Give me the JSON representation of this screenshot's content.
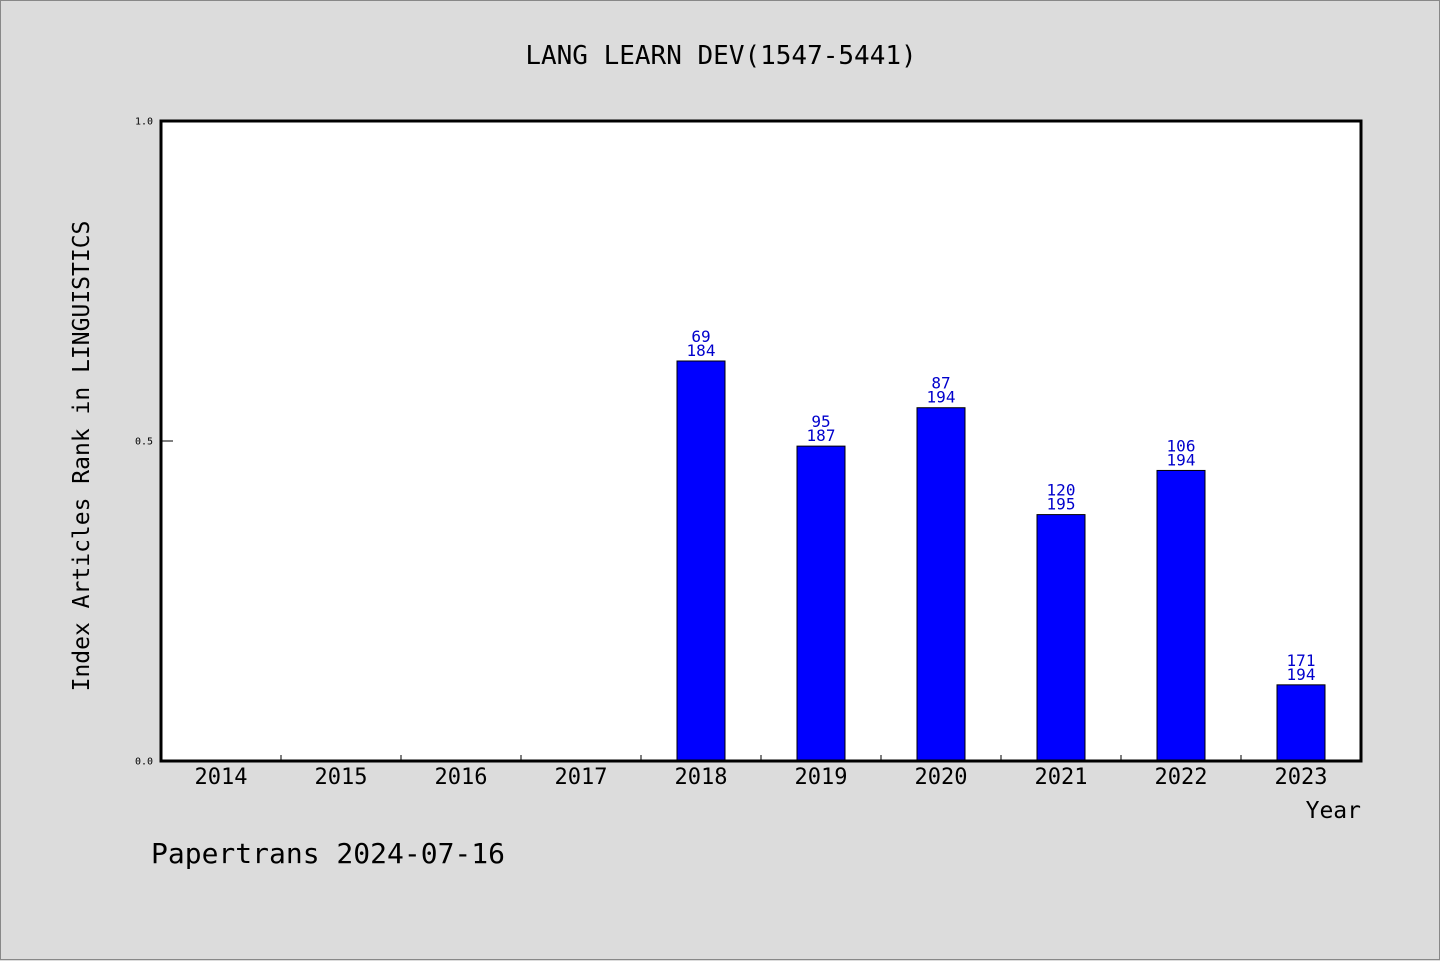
{
  "chart_data": {
    "type": "bar",
    "title": "LANG LEARN DEV(1547-5441)",
    "xlabel": "Year",
    "ylabel": "Index Articles Rank in LINGUISTICS",
    "categories": [
      "2014",
      "2015",
      "2016",
      "2017",
      "2018",
      "2019",
      "2020",
      "2021",
      "2022",
      "2023"
    ],
    "values": [
      null,
      null,
      null,
      null,
      0.625,
      0.492,
      0.552,
      0.385,
      0.454,
      0.119
    ],
    "rank_labels": [
      "",
      "",
      "",
      "",
      "69",
      "95",
      "87",
      "120",
      "106",
      "171"
    ],
    "total_labels": [
      "",
      "",
      "",
      "",
      "184",
      "187",
      "194",
      "195",
      "194",
      "194"
    ],
    "ylim": [
      0,
      1.0
    ],
    "yticks": [
      "0.0",
      "0.5",
      "1.0"
    ],
    "grid": false,
    "bar_color": "#0000ff",
    "label_color": "#0000cc"
  },
  "footer": "Papertrans 2024-07-16"
}
